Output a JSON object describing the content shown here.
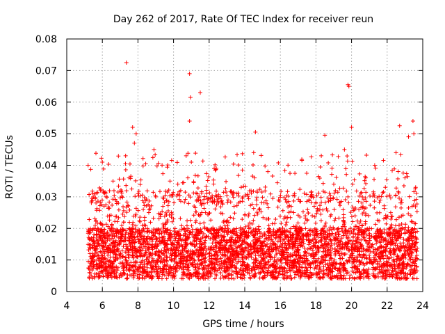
{
  "chart_data": {
    "type": "scatter",
    "title": "Day 262 of 2017, Rate Of TEC Index for receiver reun",
    "xlabel": "GPS time / hours",
    "ylabel": "ROTI / TECUs",
    "xlim": [
      4,
      24
    ],
    "ylim": [
      0,
      0.08
    ],
    "x_ticks": [
      4,
      6,
      8,
      10,
      12,
      14,
      16,
      18,
      20,
      22,
      24
    ],
    "y_ticks": [
      0,
      0.01,
      0.02,
      0.03,
      0.04,
      0.05,
      0.06,
      0.07,
      0.08
    ],
    "x_tick_labels": [
      "4",
      "6",
      "8",
      "10",
      "12",
      "14",
      "16",
      "18",
      "20",
      "22",
      "24"
    ],
    "y_tick_labels": [
      "0",
      "0.01",
      "0.02",
      "0.03",
      "0.04",
      "0.05",
      "0.06",
      "0.07",
      "0.08"
    ],
    "grid": true,
    "marker": "+",
    "color": "#ff0000",
    "series": [
      {
        "name": "ROTI",
        "x": [
          5.2,
          5.3,
          5.4,
          5.6,
          5.8,
          5.9,
          6.0,
          6.1,
          6.2,
          6.4,
          6.6,
          6.7,
          6.9,
          7.0,
          7.2,
          7.4,
          7.5,
          7.7,
          7.8,
          7.9,
          8.0,
          8.1,
          8.3,
          8.5,
          8.7,
          8.9,
          9.0,
          9.2,
          9.4,
          9.6,
          9.8,
          10.0,
          10.2,
          10.4,
          10.6,
          10.8,
          10.9,
          11.0,
          11.2,
          11.4,
          11.6,
          11.8,
          12.0,
          12.2,
          12.4,
          12.6,
          12.8,
          13.0,
          13.2,
          13.4,
          13.6,
          13.8,
          14.0,
          14.2,
          14.5,
          14.8,
          15.0,
          15.3,
          15.6,
          15.9,
          16.2,
          16.5,
          16.8,
          17.1,
          17.4,
          17.7,
          18.0,
          18.3,
          18.5,
          18.8,
          19.0,
          19.3,
          19.6,
          19.8,
          20.0,
          20.2,
          20.5,
          20.8,
          21.0,
          21.3,
          21.6,
          21.9,
          22.2,
          22.5,
          22.8,
          23.0,
          23.2,
          23.4,
          23.5,
          23.6,
          7.35,
          10.9,
          11.5,
          19.8,
          10.95,
          23.45,
          19.85,
          14.6,
          18.5,
          22.7
        ],
        "y": [
          0.04,
          0.012,
          0.008,
          0.021,
          0.015,
          0.032,
          0.041,
          0.018,
          0.01,
          0.024,
          0.035,
          0.013,
          0.028,
          0.016,
          0.022,
          0.009,
          0.036,
          0.052,
          0.047,
          0.05,
          0.031,
          0.014,
          0.026,
          0.019,
          0.012,
          0.045,
          0.03,
          0.017,
          0.027,
          0.011,
          0.035,
          0.023,
          0.014,
          0.032,
          0.02,
          0.036,
          0.054,
          0.041,
          0.018,
          0.029,
          0.012,
          0.025,
          0.01,
          0.017,
          0.039,
          0.013,
          0.022,
          0.008,
          0.019,
          0.027,
          0.014,
          0.033,
          0.016,
          0.021,
          0.044,
          0.026,
          0.012,
          0.038,
          0.019,
          0.029,
          0.023,
          0.015,
          0.031,
          0.011,
          0.024,
          0.018,
          0.028,
          0.043,
          0.021,
          0.013,
          0.034,
          0.019,
          0.045,
          0.03,
          0.052,
          0.024,
          0.015,
          0.036,
          0.02,
          0.04,
          0.017,
          0.033,
          0.025,
          0.044,
          0.029,
          0.036,
          0.049,
          0.027,
          0.05,
          0.033,
          0.0725,
          0.069,
          0.063,
          0.0655,
          0.0615,
          0.054,
          0.065,
          0.0505,
          0.0495,
          0.0525
        ]
      }
    ]
  }
}
